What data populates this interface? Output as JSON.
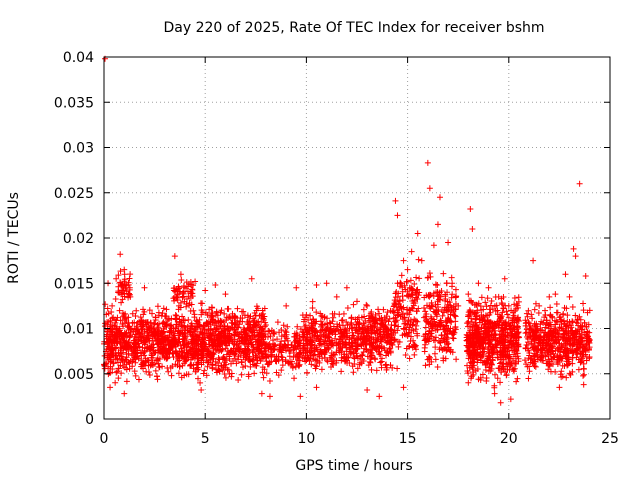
{
  "chart_data": {
    "type": "scatter",
    "title": "Day 220 of 2025, Rate Of TEC Index for receiver bshm",
    "xlabel": "GPS time / hours",
    "ylabel": "ROTI / TECUs",
    "xlim": [
      0,
      25
    ],
    "ylim": [
      0,
      0.04
    ],
    "xticks": [
      0,
      5,
      10,
      15,
      20,
      25
    ],
    "xtick_labels": [
      "0",
      "5",
      "10",
      "15",
      "20",
      "25"
    ],
    "yticks": [
      0,
      0.005,
      0.01,
      0.015,
      0.02,
      0.025,
      0.03,
      0.035,
      0.04
    ],
    "ytick_labels": [
      "0",
      "0.005",
      "0.01",
      "0.015",
      "0.02",
      "0.025",
      "0.03",
      "0.035",
      "0.04"
    ],
    "grid": true,
    "marker": "+",
    "series": [
      {
        "name": "ROTI",
        "color": "#ff0000",
        "points": [
          [
            0.05,
            0.0398
          ],
          [
            0.2,
            0.015
          ],
          [
            0.4,
            0.0125
          ],
          [
            0.6,
            0.0155
          ],
          [
            0.8,
            0.0182
          ],
          [
            1.0,
            0.0165
          ],
          [
            0.9,
            0.0065
          ],
          [
            1.3,
            0.0135
          ],
          [
            2.0,
            0.0145
          ],
          [
            2.5,
            0.0095
          ],
          [
            3.0,
            0.0105
          ],
          [
            3.5,
            0.018
          ],
          [
            3.8,
            0.016
          ],
          [
            4.3,
            0.0148
          ],
          [
            4.5,
            0.0152
          ],
          [
            5.0,
            0.0142
          ],
          [
            5.5,
            0.0148
          ],
          [
            6.0,
            0.0138
          ],
          [
            6.5,
            0.0105
          ],
          [
            7.0,
            0.0095
          ],
          [
            7.3,
            0.0155
          ],
          [
            7.8,
            0.009
          ],
          [
            8.2,
            0.0042
          ],
          [
            8.5,
            0.0065
          ],
          [
            9.0,
            0.0125
          ],
          [
            9.5,
            0.0145
          ],
          [
            10.0,
            0.0115
          ],
          [
            10.5,
            0.0148
          ],
          [
            11.0,
            0.015
          ],
          [
            11.5,
            0.0135
          ],
          [
            12.0,
            0.0145
          ],
          [
            12.5,
            0.013
          ],
          [
            13.0,
            0.0125
          ],
          [
            13.5,
            0.0105
          ],
          [
            14.0,
            0.0085
          ],
          [
            14.3,
            0.0095
          ],
          [
            14.4,
            0.0241
          ],
          [
            14.5,
            0.0225
          ],
          [
            14.8,
            0.0175
          ],
          [
            15.0,
            0.0165
          ],
          [
            15.2,
            0.0185
          ],
          [
            15.5,
            0.0205
          ],
          [
            15.7,
            0.0175
          ],
          [
            16.0,
            0.0283
          ],
          [
            16.1,
            0.0255
          ],
          [
            16.3,
            0.0192
          ],
          [
            16.6,
            0.0245
          ],
          [
            16.5,
            0.0215
          ],
          [
            17.0,
            0.0195
          ],
          [
            17.2,
            0.015
          ],
          [
            17.5,
            0.0125
          ],
          [
            18.0,
            0.0138
          ],
          [
            18.1,
            0.0232
          ],
          [
            18.2,
            0.021
          ],
          [
            18.5,
            0.015
          ],
          [
            19.0,
            0.0145
          ],
          [
            19.5,
            0.0135
          ],
          [
            19.8,
            0.0155
          ],
          [
            20.0,
            0.0125
          ],
          [
            20.5,
            0.009
          ],
          [
            20.8,
            0.0065
          ],
          [
            21.2,
            0.0175
          ],
          [
            21.5,
            0.0125
          ],
          [
            22.0,
            0.0135
          ],
          [
            22.3,
            0.0138
          ],
          [
            22.6,
            0.0105
          ],
          [
            22.8,
            0.016
          ],
          [
            23.0,
            0.0135
          ],
          [
            23.2,
            0.0188
          ],
          [
            23.3,
            0.018
          ],
          [
            23.5,
            0.026
          ],
          [
            23.8,
            0.0158
          ],
          [
            24.0,
            0.012
          ],
          [
            19.6,
            0.0018
          ],
          [
            19.3,
            0.0028
          ],
          [
            20.1,
            0.0022
          ],
          [
            14.8,
            0.0035
          ],
          [
            7.8,
            0.0028
          ],
          [
            8.2,
            0.0025
          ],
          [
            9.7,
            0.0025
          ],
          [
            10.5,
            0.0035
          ],
          [
            4.8,
            0.0032
          ],
          [
            1.0,
            0.0028
          ],
          [
            0.3,
            0.0035
          ],
          [
            13.0,
            0.0032
          ],
          [
            13.6,
            0.0025
          ],
          [
            22.5,
            0.0035
          ],
          [
            23.7,
            0.0038
          ],
          [
            18.0,
            0.004
          ]
        ]
      }
    ],
    "dense_bands": [
      {
        "x_start": 0.0,
        "x_end": 8.0,
        "y_low": 0.0035,
        "y_high": 0.0135,
        "count": 1500,
        "seed": 11
      },
      {
        "x_start": 0.7,
        "x_end": 1.3,
        "y_low": 0.012,
        "y_high": 0.017,
        "count": 40,
        "seed": 12
      },
      {
        "x_start": 3.4,
        "x_end": 4.4,
        "y_low": 0.012,
        "y_high": 0.016,
        "count": 50,
        "seed": 13
      },
      {
        "x_start": 8.0,
        "x_end": 9.8,
        "y_low": 0.004,
        "y_high": 0.0115,
        "count": 160,
        "seed": 14
      },
      {
        "x_start": 9.8,
        "x_end": 14.3,
        "y_low": 0.0042,
        "y_high": 0.0135,
        "count": 650,
        "seed": 15
      },
      {
        "x_start": 14.3,
        "x_end": 15.6,
        "y_low": 0.004,
        "y_high": 0.0195,
        "count": 160,
        "seed": 16
      },
      {
        "x_start": 15.8,
        "x_end": 17.4,
        "y_low": 0.004,
        "y_high": 0.0175,
        "count": 240,
        "seed": 17
      },
      {
        "x_start": 17.9,
        "x_end": 20.5,
        "y_low": 0.003,
        "y_high": 0.0145,
        "count": 650,
        "seed": 18
      },
      {
        "x_start": 20.8,
        "x_end": 24.0,
        "y_low": 0.0035,
        "y_high": 0.0135,
        "count": 550,
        "seed": 19
      }
    ]
  }
}
